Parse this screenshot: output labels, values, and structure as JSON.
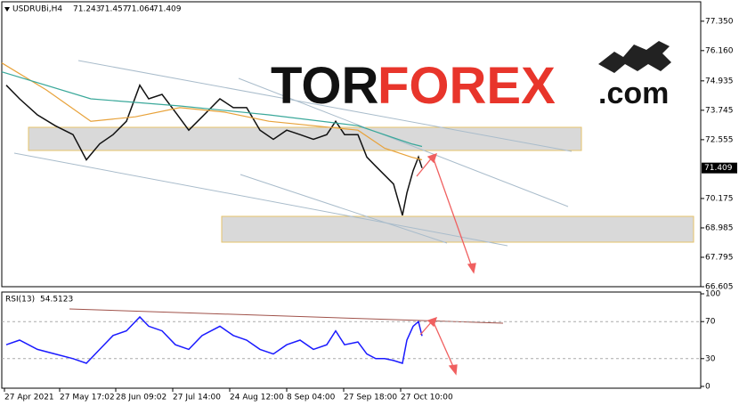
{
  "chart_data": [
    {
      "type": "line",
      "symbol": "USDRUBi,H4",
      "ohlc": [
        71.243,
        71.457,
        71.064,
        71.409
      ],
      "watermark": [
        "TOR",
        "FOREX",
        ".com"
      ],
      "xlim": [
        0,
        392.5
      ],
      "ylim": [
        66.605,
        78.1
      ],
      "yticks": [
        {
          "value": 77.35,
          "label": "77.350"
        },
        {
          "value": 76.16,
          "label": "76.160"
        },
        74.935,
        73.745,
        72.555,
        70.175,
        68.985,
        67.795,
        66.605
      ],
      "series": [
        {
          "color": "#111111",
          "x": [
            2.5,
            10,
            20,
            30,
            40,
            47.5,
            55,
            62.5,
            70,
            77.5,
            82.5,
            90,
            97.5,
            105,
            112.5,
            122.5,
            130,
            137.5,
            145,
            152.5,
            160,
            167.5,
            175,
            182.5,
            187.5,
            192.5,
            200,
            205,
            210,
            215,
            220,
            225,
            227.5,
            231,
            234,
            236
          ],
          "values": [
            74.76,
            74.21,
            73.56,
            73.12,
            72.76,
            71.74,
            72.39,
            72.76,
            73.3,
            74.76,
            74.21,
            74.39,
            73.67,
            72.94,
            73.48,
            74.21,
            73.85,
            73.85,
            72.94,
            72.57,
            72.94,
            72.76,
            72.57,
            72.76,
            73.3,
            72.76,
            72.76,
            71.85,
            71.48,
            71.12,
            70.76,
            69.49,
            70.4,
            71.3,
            71.85,
            71.409
          ]
        },
        {
          "color": "#e8a23a",
          "x": [
            0,
            25,
            50,
            75,
            100,
            125,
            150,
            175,
            200,
            215,
            230,
            236
          ],
          "values": [
            75.66,
            74.57,
            73.3,
            73.48,
            73.85,
            73.67,
            73.3,
            73.12,
            72.94,
            72.21,
            71.85,
            71.74
          ]
        },
        {
          "color": "#3aa89a",
          "x": [
            0,
            50,
            100,
            150,
            200,
            230,
            236
          ],
          "values": [
            75.3,
            74.21,
            73.92,
            73.56,
            73.12,
            72.39,
            72.28
          ]
        }
      ]
    },
    {
      "type": "line",
      "title": "RSI(13)",
      "last": 54.5123,
      "xlim": [
        0,
        392.5
      ],
      "ylim": [
        0,
        100
      ],
      "yticks": [
        100,
        70,
        30,
        0
      ],
      "xticks": [
        {
          "value": 1.5,
          "label": "27 Apr 2021"
        },
        {
          "value": 32.5,
          "label": "27 May 17:02"
        },
        {
          "value": 64,
          "label": "28 Jun 09:02"
        },
        {
          "value": 96,
          "label": "27 Jul 14:00"
        },
        {
          "value": 128,
          "label": "24 Aug 12:00"
        },
        {
          "value": 160,
          "label": "8 Sep 04:00"
        },
        {
          "value": 192,
          "label": "27 Sep 18:00"
        },
        {
          "value": 224,
          "label": "27 Oct 10:00"
        }
      ],
      "series": [
        {
          "color": "#1a1aff",
          "x": [
            2.5,
            10,
            20,
            30,
            40,
            47.5,
            55,
            62.5,
            70,
            77.5,
            82.5,
            90,
            97.5,
            105,
            112.5,
            122.5,
            130,
            137.5,
            145,
            152.5,
            160,
            167.5,
            175,
            182.5,
            187.5,
            192.5,
            200,
            205,
            210,
            215,
            220,
            225,
            227.5,
            231,
            234,
            236
          ],
          "values": [
            45,
            50,
            40,
            35,
            30,
            25,
            40,
            55,
            60,
            75,
            65,
            60,
            45,
            40,
            55,
            65,
            55,
            50,
            40,
            35,
            45,
            50,
            40,
            45,
            60,
            45,
            48,
            35,
            30,
            30,
            28,
            25,
            50,
            65,
            70,
            54.5123
          ]
        }
      ]
    }
  ]
}
